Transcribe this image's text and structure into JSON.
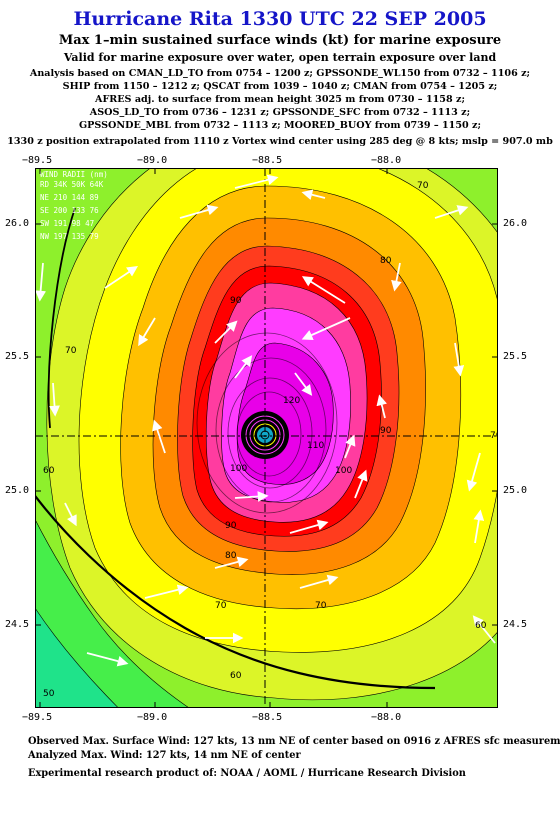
{
  "header": {
    "title": "Hurricane Rita 1330 UTC 22 SEP 2005",
    "subtitle1": "Max 1–min sustained surface winds (kt) for marine exposure",
    "subtitle2": "Valid for marine exposure over water, open terrain exposure over land",
    "analysis_lines": [
      "Analysis based on  CMAN_LD_TO from 0754 – 1200 z;  GPSSONDE_WL150 from 0732 – 1106 z;",
      "SHIP from 1150 – 1212 z;  QSCAT from 1039 – 1040 z;  CMAN from 0754 – 1205 z;",
      "AFRES adj. to surface from mean height 3025 m from 0730 – 1158 z;",
      "ASOS_LD_TO from 0736 – 1231 z;  GPSSONDE_SFC from 0732 – 1113 z;",
      "GPSSONDE_MBL from 0732 – 1113 z;  MOORED_BUOY from 0739 – 1150 z;"
    ],
    "position_note": "1330 z position extrapolated from 1110 z Vortex wind center using 285 deg @ 8 kts; mslp = 907.0 mb"
  },
  "map": {
    "x_ticks": [
      "−89.5",
      "−89.0",
      "−88.5",
      "−88.0"
    ],
    "y_ticks": [
      "26.0",
      "25.5",
      "25.0",
      "24.5"
    ],
    "center_lon": -88.5,
    "center_lat": 25.2,
    "contour_labels": [
      "50",
      "60",
      "70",
      "80",
      "90",
      "100",
      "110",
      "120"
    ],
    "wind_radii_table": [
      "WIND RADII (nm)",
      "RD 34K 50K 64K",
      "NE 210 144  89",
      "SE 200 133  76",
      "SW 191  98  47",
      "NW 197 135  79"
    ],
    "colors": {
      "c40": "#1fe38a",
      "c50": "#46ee4a",
      "c60": "#8ef02c",
      "c70": "#dcf528",
      "c80": "#ffff00",
      "c90": "#ffc000",
      "c100": "#ff8a00",
      "c110": "#ff3c1e",
      "c115": "#ff0000",
      "c120": "#ff3ca0",
      "c130": "#ff3cff",
      "c140": "#e800e8",
      "core": "#10a8c8"
    }
  },
  "footer": {
    "line1": "Observed Max. Surface Wind: 127 kts, 13 nm NE of center based on 0916 z AFRES sfc measurement",
    "line2": "Analyzed Max. Wind: 127 kts, 14 nm NE of center",
    "line3": "Experimental research product of:  NOAA / AOML / Hurricane Research Division"
  }
}
